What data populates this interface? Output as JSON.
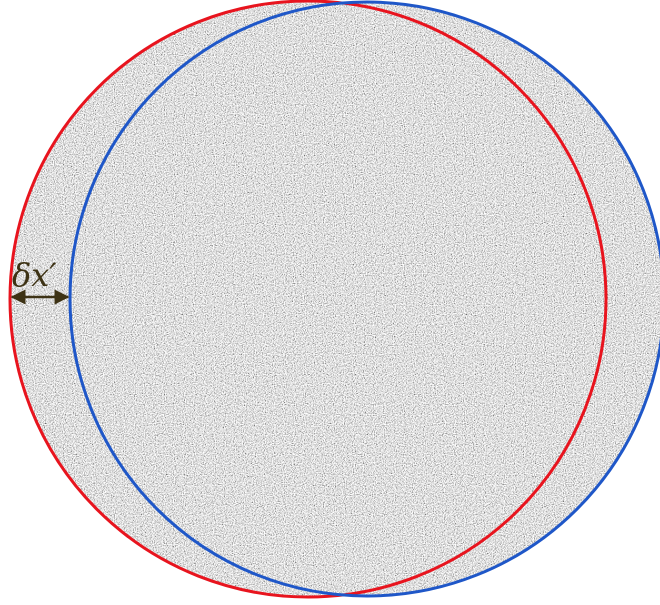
{
  "figure": {
    "shift_label": "δx′",
    "colors": {
      "reference_circle": "#e8141e",
      "shifted_circle": "#1f57c8",
      "annotation": "#3d3214",
      "speckle_light": "#ececec",
      "speckle_dark": "#5e5e5e",
      "background": "#ffffff"
    }
  }
}
